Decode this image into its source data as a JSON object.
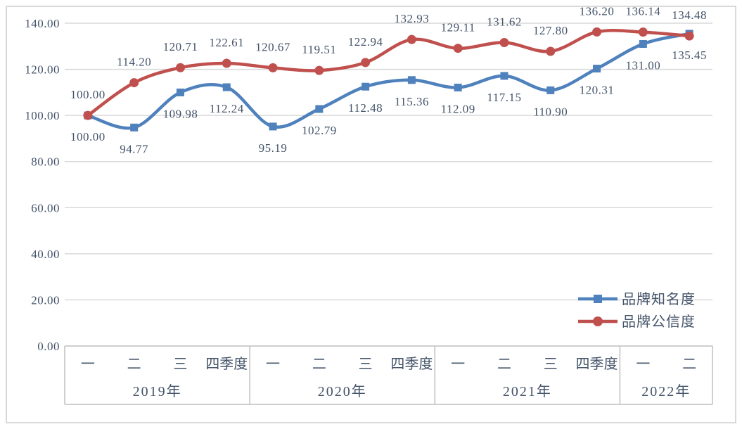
{
  "figure": {
    "background_color": "#FFFFFF",
    "border_color": "#D9D9D9"
  },
  "chart_data": {
    "type": "line",
    "smooth": true,
    "title": "",
    "xlabel": "",
    "ylabel": "",
    "quarter_labels": [
      "一",
      "二",
      "三",
      "四季度",
      "一",
      "二",
      "三",
      "四季度",
      "一",
      "二",
      "三",
      "四季度",
      "一",
      "二"
    ],
    "year_groups": [
      {
        "label": "2019年",
        "quarters": 4
      },
      {
        "label": "2020年",
        "quarters": 4
      },
      {
        "label": "2021年",
        "quarters": 4
      },
      {
        "label": "2022年",
        "quarters": 2
      }
    ],
    "series": [
      {
        "name": "品牌知名度",
        "color": "#4F81BD",
        "marker": "square",
        "data_label_position": "below",
        "values": [
          100.0,
          94.77,
          109.98,
          112.24,
          95.19,
          102.79,
          112.48,
          115.36,
          112.09,
          117.15,
          110.9,
          120.31,
          131.0,
          135.45
        ]
      },
      {
        "name": "品牌公信度",
        "color": "#C0504D",
        "marker": "circle",
        "data_label_position": "above",
        "values": [
          100.0,
          114.2,
          120.71,
          122.61,
          120.67,
          119.51,
          122.94,
          132.93,
          129.11,
          131.62,
          127.8,
          136.2,
          136.14,
          134.48
        ]
      }
    ],
    "ylim": [
      0,
      140
    ],
    "ytick_step": 20,
    "ytick_labels": [
      "0.00",
      "20.00",
      "40.00",
      "60.00",
      "80.00",
      "100.00",
      "120.00",
      "140.00"
    ],
    "value_format_decimals": 2,
    "grid": true,
    "legend_position": "right-lower",
    "colors": {
      "text": "#44546A",
      "gridline": "#D9D9D9",
      "axis_line": "#BFBFBF"
    }
  }
}
